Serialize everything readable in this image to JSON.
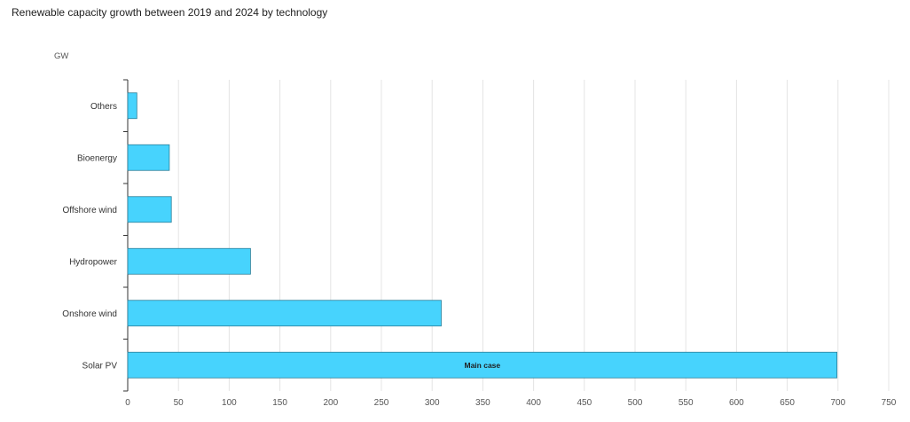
{
  "chart_data": {
    "type": "bar",
    "orientation": "horizontal",
    "title": "Renewable capacity growth between 2019 and 2024 by technology",
    "unit_label": "GW",
    "categories": [
      "Others",
      "Bioenergy",
      "Offshore wind",
      "Hydropower",
      "Onshore wind",
      "Solar PV"
    ],
    "series": [
      {
        "name": "Main case",
        "values": [
          9,
          41,
          43,
          121,
          309,
          699
        ],
        "color": "#47d3fd"
      }
    ],
    "xlim": [
      0,
      750
    ],
    "xticks": [
      0,
      50,
      100,
      150,
      200,
      250,
      300,
      350,
      400,
      450,
      500,
      550,
      600,
      650,
      700,
      750
    ],
    "grid": true,
    "bar_label_category": "Solar PV"
  }
}
